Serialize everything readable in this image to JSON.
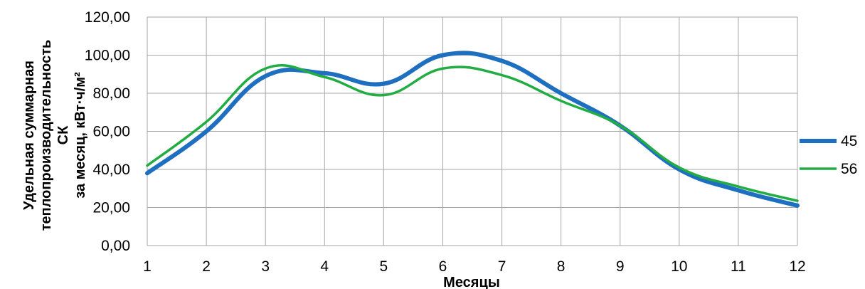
{
  "chart_data": {
    "type": "line",
    "xlabel": "Месяцы",
    "ylabel_lines": [
      "Удельная суммарная",
      "теплопроизводительность",
      "СК",
      "за месяц, кВт·ч/м²"
    ],
    "categories": [
      "1",
      "2",
      "3",
      "4",
      "5",
      "6",
      "7",
      "8",
      "9",
      "10",
      "11",
      "12"
    ],
    "y_ticks": [
      "0,00",
      "20,00",
      "40,00",
      "60,00",
      "80,00",
      "100,00",
      "120,00"
    ],
    "ylim": [
      0,
      120
    ],
    "grid": true,
    "legend_position": "right",
    "series": [
      {
        "name": "45",
        "color": "#1f6fc1",
        "values": [
          38,
          60,
          89,
          90.5,
          85,
          100,
          97,
          80,
          63,
          40,
          29,
          21
        ]
      },
      {
        "name": "56",
        "color": "#22ac44",
        "values": [
          42,
          65,
          93,
          88.5,
          79,
          93,
          89.5,
          76,
          63,
          41,
          31,
          23.5
        ]
      }
    ]
  }
}
